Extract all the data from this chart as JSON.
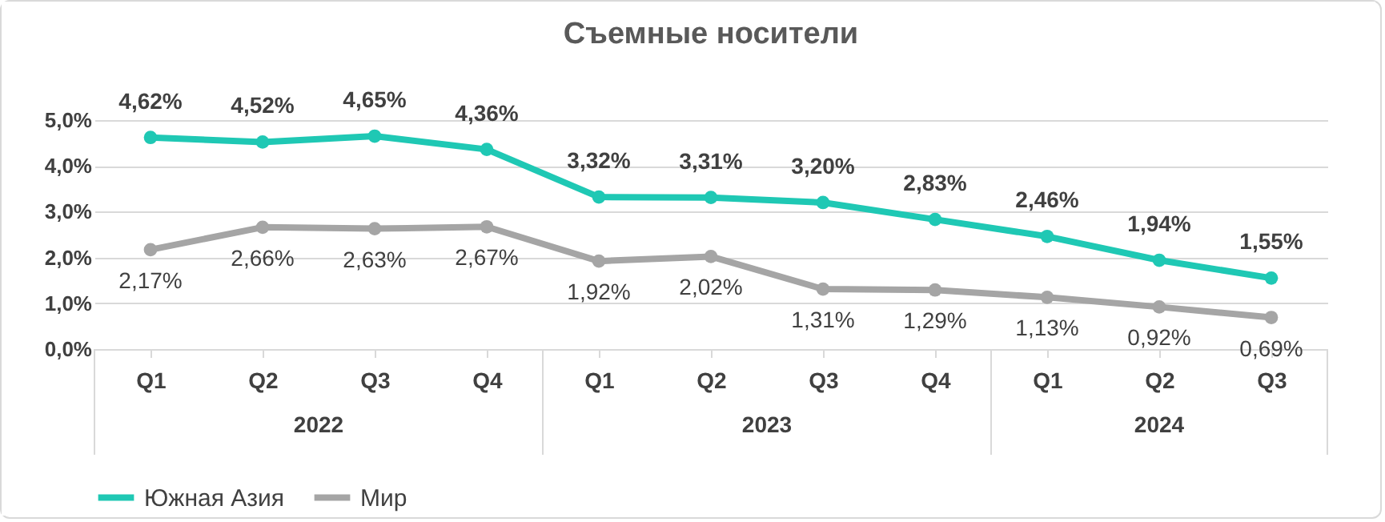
{
  "chart_data": {
    "type": "line",
    "title": "Съемные носители",
    "categories": [
      "Q1",
      "Q2",
      "Q3",
      "Q4",
      "Q1",
      "Q2",
      "Q3",
      "Q4",
      "Q1",
      "Q2",
      "Q3"
    ],
    "series": [
      {
        "name": "Южная Азия",
        "color": "#1fc8b4",
        "values": [
          4.62,
          4.52,
          4.65,
          4.36,
          3.32,
          3.31,
          3.2,
          2.83,
          2.46,
          1.94,
          1.55
        ],
        "value_labels": [
          "4,62%",
          "4,52%",
          "4,65%",
          "4,36%",
          "3,32%",
          "3,31%",
          "3,20%",
          "2,83%",
          "2,46%",
          "1,94%",
          "1,55%"
        ]
      },
      {
        "name": "Мир",
        "color": "#a5a5a5",
        "values": [
          2.17,
          2.66,
          2.63,
          2.67,
          1.92,
          2.02,
          1.31,
          1.29,
          1.13,
          0.92,
          0.69
        ],
        "value_labels": [
          "2,17%",
          "2,66%",
          "2,63%",
          "2,67%",
          "1,92%",
          "2,02%",
          "1,31%",
          "1,29%",
          "1,13%",
          "0,92%",
          "0,69%"
        ]
      }
    ],
    "ylim": [
      0,
      5
    ],
    "yticks": [
      {
        "value": 0,
        "label": "0,0%"
      },
      {
        "value": 1,
        "label": "1,0%"
      },
      {
        "value": 2,
        "label": "2,0%"
      },
      {
        "value": 3,
        "label": "3,0%"
      },
      {
        "value": 4,
        "label": "4,0%"
      },
      {
        "value": 5,
        "label": "5,0%"
      }
    ],
    "annotations": [
      "2022",
      "2023",
      "2024"
    ],
    "grid": "y",
    "legend": "bottom",
    "marker": "circle",
    "line_style": "solid"
  }
}
